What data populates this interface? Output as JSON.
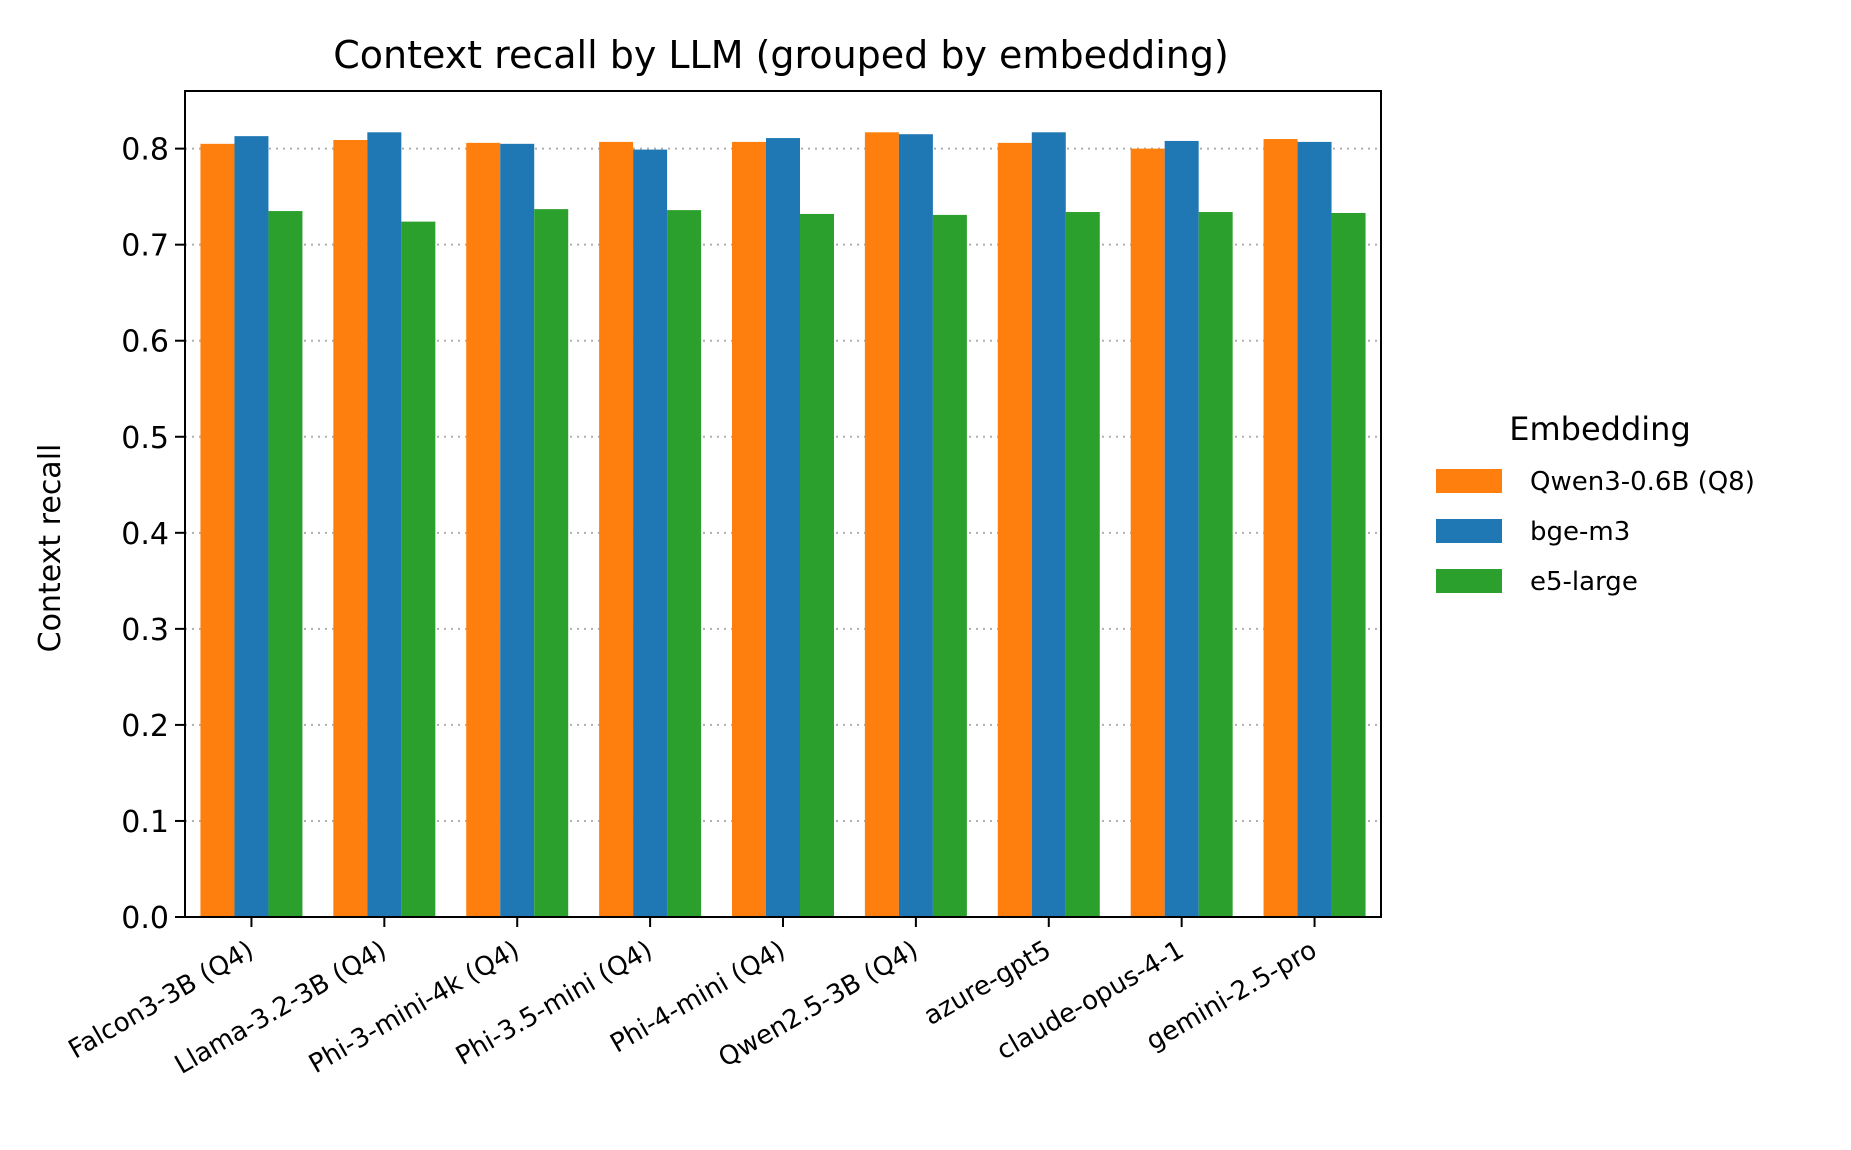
{
  "chart_data": {
    "type": "bar",
    "title": "Context recall by LLM (grouped by embedding)",
    "xlabel": "",
    "ylabel": "Context recall",
    "ylim": [
      0,
      0.86
    ],
    "yticks": [
      "0.0",
      "0.1",
      "0.2",
      "0.3",
      "0.4",
      "0.5",
      "0.6",
      "0.7",
      "0.8"
    ],
    "grid": "horizontal dotted",
    "legend": {
      "title": "Embedding",
      "placement": "right-outside"
    },
    "categories": [
      "Falcon3-3B (Q4)",
      "Llama-3.2-3B (Q4)",
      "Phi-3-mini-4k (Q4)",
      "Phi-3.5-mini (Q4)",
      "Phi-4-mini (Q4)",
      "Qwen2.5-3B (Q4)",
      "azure-gpt5",
      "claude-opus-4-1",
      "gemini-2.5-pro"
    ],
    "series": [
      {
        "name": "Qwen3-0.6B (Q8)",
        "color": "#ff7f0e",
        "values": [
          0.805,
          0.809,
          0.806,
          0.807,
          0.807,
          0.817,
          0.806,
          0.8,
          0.81
        ]
      },
      {
        "name": "bge-m3",
        "color": "#1f77b4",
        "values": [
          0.813,
          0.817,
          0.805,
          0.799,
          0.811,
          0.815,
          0.817,
          0.808,
          0.807
        ]
      },
      {
        "name": "e5-large",
        "color": "#2ca02c",
        "values": [
          0.735,
          0.724,
          0.737,
          0.736,
          0.732,
          0.731,
          0.734,
          0.734,
          0.733
        ]
      }
    ]
  }
}
